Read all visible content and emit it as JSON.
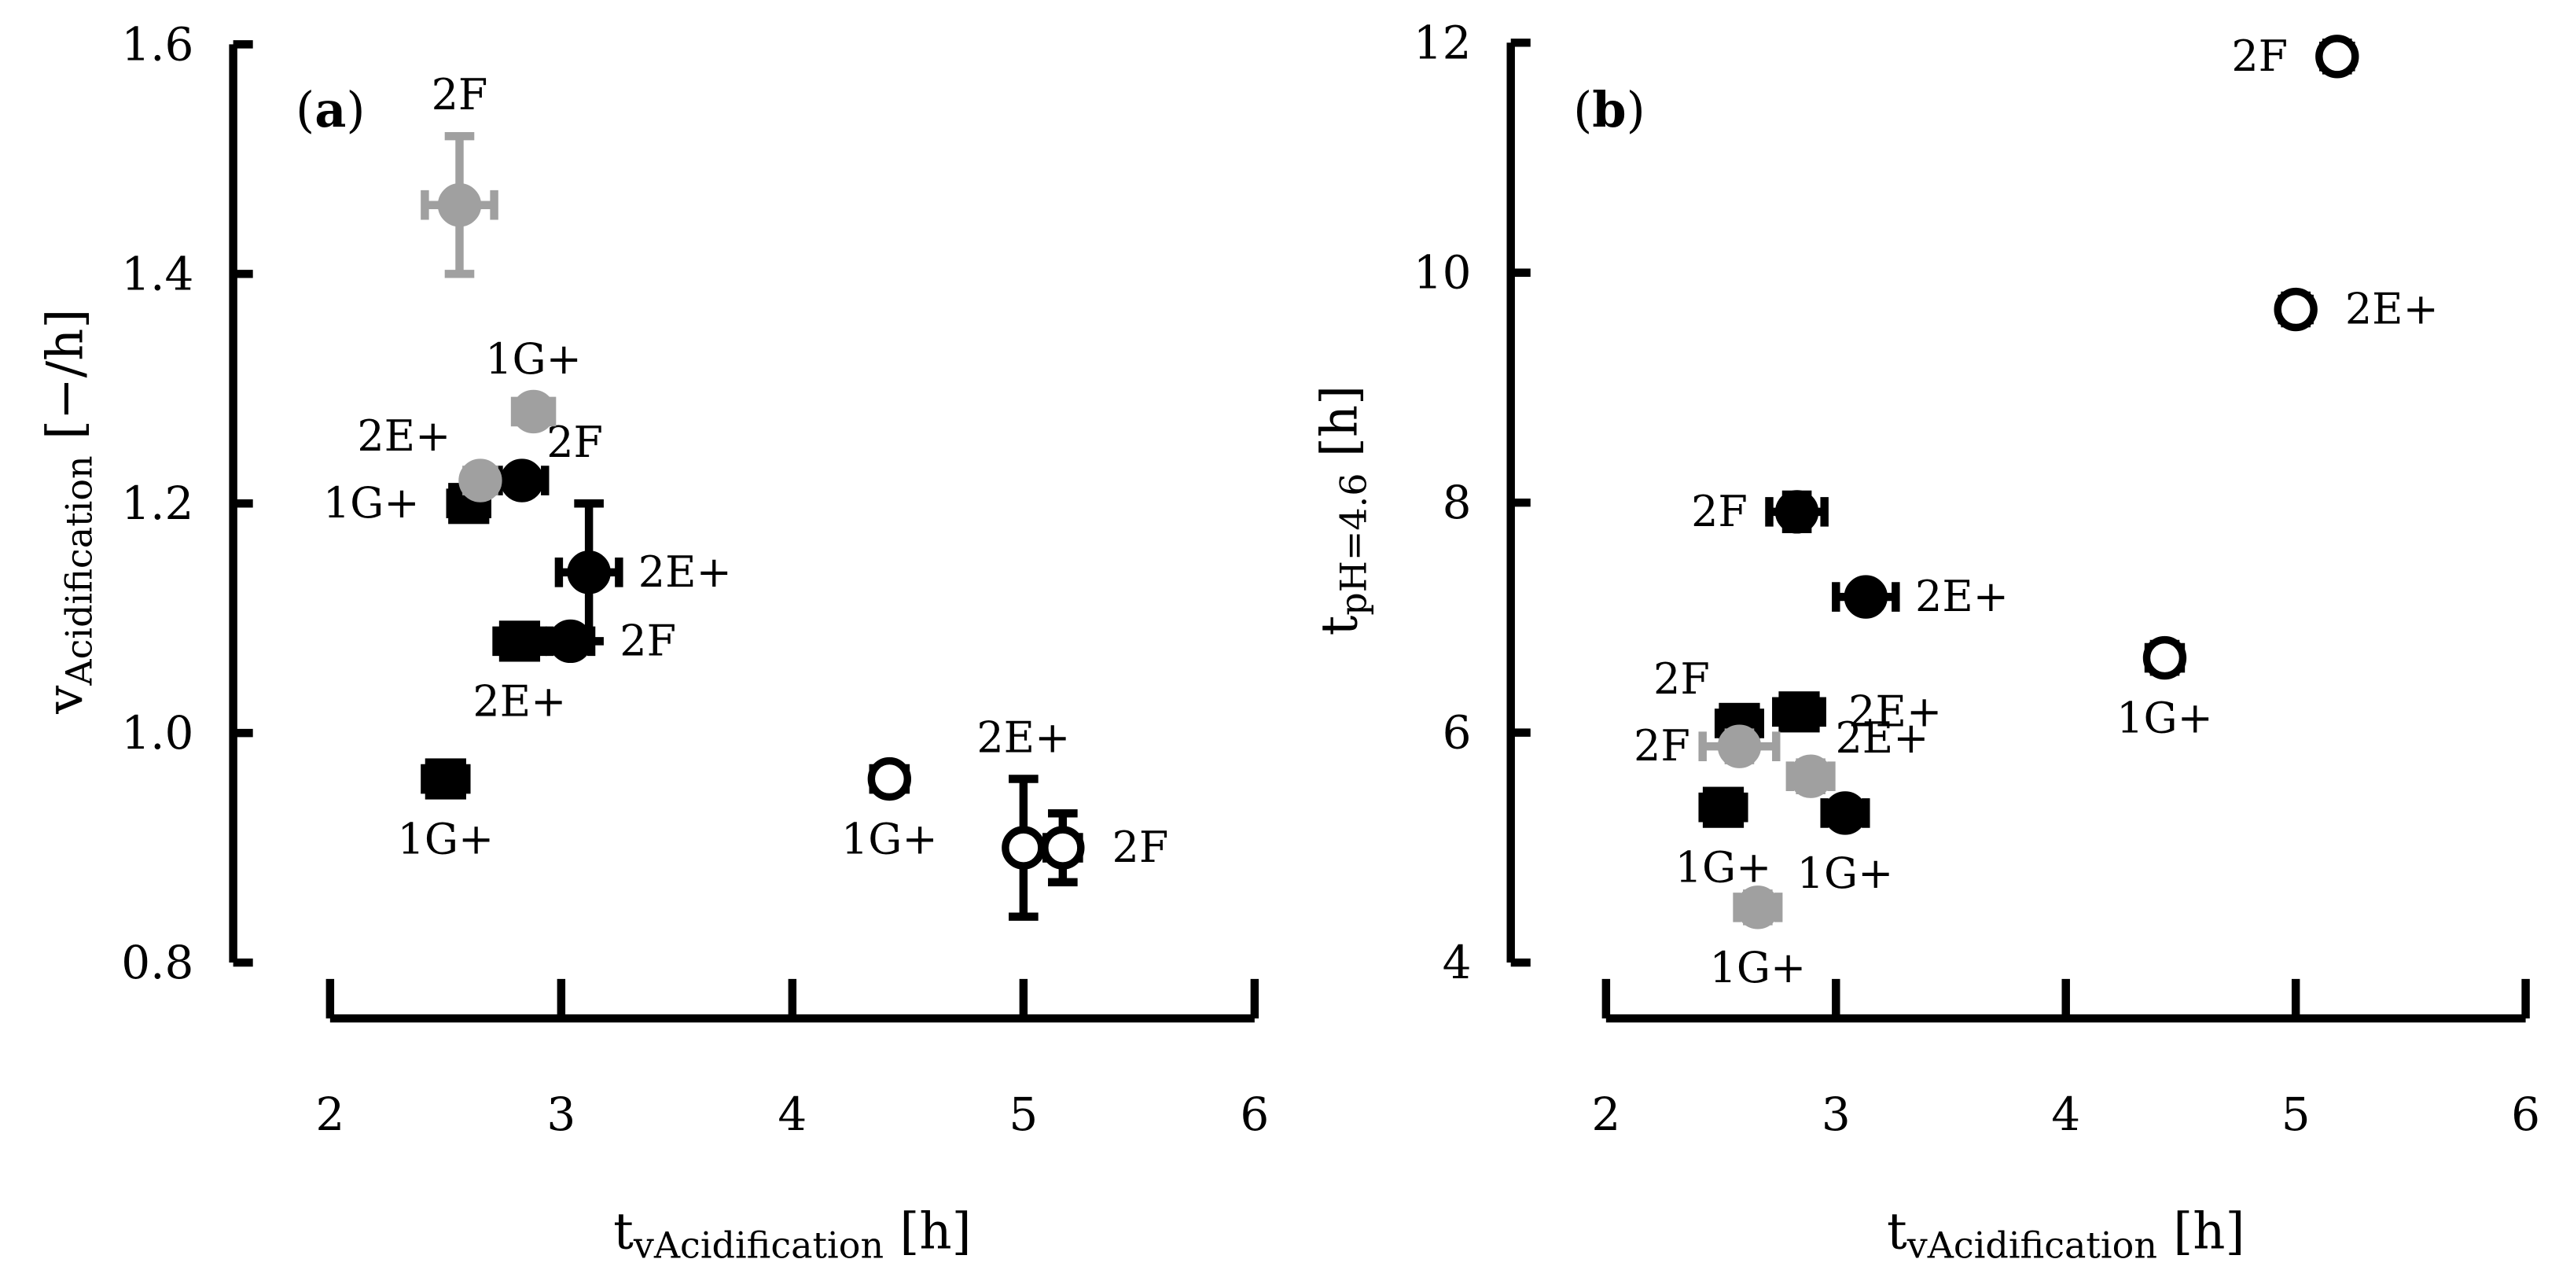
{
  "chart_data": [
    {
      "panel": "(a)",
      "panel_letter": "a",
      "type": "scatter",
      "xlim": [
        2,
        6
      ],
      "ylim": [
        0.8,
        1.6
      ],
      "x_ticks": [
        "2",
        "3",
        "4",
        "5",
        "6"
      ],
      "y_ticks": [
        "0.8",
        "1.0",
        "1.2",
        "1.4",
        "1.6"
      ],
      "xlabel": "t",
      "xlabel_sub": "vAcidification",
      "xlabel_unit": "[h]",
      "ylabel": "v",
      "ylabel_sub": "Acidification",
      "ylabel_unit": "[−/h]",
      "series": [
        {
          "marker": "square",
          "color": "#000000",
          "fill": "#000000",
          "points": [
            {
              "x": 2.6,
              "y": 1.2,
              "xerr": 0.08,
              "yerr": 0.01,
              "label": "1G+",
              "label_side": "left"
            },
            {
              "x": 2.82,
              "y": 1.08,
              "xerr": 0.1,
              "yerr": 0.01,
              "label": "2E+",
              "label_side": "below"
            },
            {
              "x": 2.5,
              "y": 0.96,
              "xerr": 0.09,
              "yerr": 0.01,
              "label": "1G+",
              "label_side": "below"
            }
          ]
        },
        {
          "marker": "circle",
          "color": "#000000",
          "fill": "#000000",
          "points": [
            {
              "x": 2.83,
              "y": 1.22,
              "xerr": 0.1,
              "yerr": 0.01,
              "label": "2F",
              "label_side": "right-up"
            },
            {
              "x": 3.12,
              "y": 1.14,
              "xerr": 0.13,
              "yerr": 0.06,
              "label": "2E+",
              "label_side": "right"
            },
            {
              "x": 3.04,
              "y": 1.08,
              "xerr": 0.09,
              "yerr": 0.01,
              "label": "2F",
              "label_side": "right"
            }
          ]
        },
        {
          "marker": "circle",
          "color": "#a0a0a0",
          "fill": "#a0a0a0",
          "points": [
            {
              "x": 2.56,
              "y": 1.46,
              "xerr": 0.15,
              "yerr": 0.06,
              "label": "2F",
              "label_side": "above"
            },
            {
              "x": 2.88,
              "y": 1.28,
              "xerr": 0.08,
              "yerr": 0.01,
              "label": "1G+",
              "label_side": "above"
            },
            {
              "x": 2.65,
              "y": 1.22,
              "xerr": 0.06,
              "yerr": 0.01,
              "label": "2E+",
              "label_side": "left-up"
            }
          ]
        },
        {
          "marker": "circle",
          "color": "#000000",
          "fill": "#ffffff",
          "points": [
            {
              "x": 4.42,
              "y": 0.96,
              "xerr": 0.07,
              "yerr": 0.01,
              "label": "1G+",
              "label_side": "below"
            },
            {
              "x": 5.0,
              "y": 0.9,
              "xerr": 0.02,
              "yerr": 0.06,
              "label": "2E+",
              "label_side": "above"
            },
            {
              "x": 5.17,
              "y": 0.9,
              "xerr": 0.07,
              "yerr": 0.03,
              "label": "2F",
              "label_side": "right"
            }
          ]
        }
      ]
    },
    {
      "panel": "(b)",
      "panel_letter": "b",
      "type": "scatter",
      "xlim": [
        2,
        6
      ],
      "ylim": [
        4,
        12
      ],
      "x_ticks": [
        "2",
        "3",
        "4",
        "5",
        "6"
      ],
      "y_ticks": [
        "4",
        "6",
        "8",
        "10",
        "12"
      ],
      "xlabel": "t",
      "xlabel_sub": "vAcidification",
      "xlabel_unit": "[h]",
      "ylabel": "t",
      "ylabel_sub": "pH=4.6",
      "ylabel_unit": "[h]",
      "series": [
        {
          "marker": "square",
          "color": "#000000",
          "fill": "#000000",
          "points": [
            {
              "x": 2.58,
              "y": 6.08,
              "xerr": 0.09,
              "yerr": 0.1,
              "label": "2F",
              "label_side": "left-up"
            },
            {
              "x": 2.84,
              "y": 6.18,
              "xerr": 0.1,
              "yerr": 0.1,
              "label": "2E+",
              "label_side": "right"
            },
            {
              "x": 2.51,
              "y": 5.35,
              "xerr": 0.09,
              "yerr": 0.1,
              "label": "1G+",
              "label_side": "below"
            }
          ]
        },
        {
          "marker": "circle",
          "color": "#000000",
          "fill": "#000000",
          "points": [
            {
              "x": 2.83,
              "y": 7.92,
              "xerr": 0.12,
              "yerr": 0.15,
              "label": "2F",
              "label_side": "left"
            },
            {
              "x": 3.13,
              "y": 7.18,
              "xerr": 0.13,
              "yerr": 0.1,
              "label": "2E+",
              "label_side": "right"
            },
            {
              "x": 3.04,
              "y": 5.3,
              "xerr": 0.09,
              "yerr": 0.1,
              "label": "1G+",
              "label_side": "below"
            }
          ]
        },
        {
          "marker": "circle",
          "color": "#a0a0a0",
          "fill": "#a0a0a0",
          "points": [
            {
              "x": 2.58,
              "y": 5.88,
              "xerr": 0.16,
              "yerr": 0.12,
              "label": "2F",
              "label_side": "left"
            },
            {
              "x": 2.89,
              "y": 5.62,
              "xerr": 0.09,
              "yerr": 0.12,
              "label": "2E+",
              "label_side": "right-up"
            },
            {
              "x": 2.66,
              "y": 4.48,
              "xerr": 0.09,
              "yerr": 0.12,
              "label": "1G+",
              "label_side": "below"
            }
          ]
        },
        {
          "marker": "circle",
          "color": "#000000",
          "fill": "#ffffff",
          "points": [
            {
              "x": 5.18,
              "y": 11.88,
              "xerr": 0.06,
              "yerr": 0.12,
              "label": "2F",
              "label_side": "left"
            },
            {
              "x": 5.0,
              "y": 9.68,
              "xerr": 0.06,
              "yerr": 0.12,
              "label": "2E+",
              "label_side": "right"
            },
            {
              "x": 4.43,
              "y": 6.65,
              "xerr": 0.07,
              "yerr": 0.12,
              "label": "1G+",
              "label_side": "below"
            }
          ]
        }
      ]
    }
  ]
}
